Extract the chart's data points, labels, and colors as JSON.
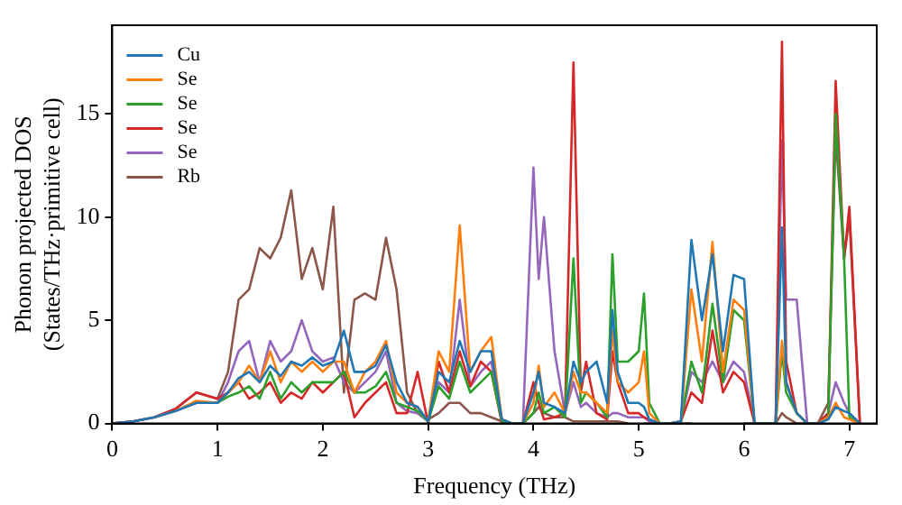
{
  "chart_data": {
    "type": "line",
    "xlabel": "Frequency (THz)",
    "ylabel": "Phonon projected DOS\n(States/THz·primitive cell)",
    "xlim": [
      0,
      7.26
    ],
    "xticks": [
      0,
      1,
      2,
      3,
      4,
      5,
      6,
      7
    ],
    "ylim": [
      0,
      19.3
    ],
    "yticks": [
      0,
      5,
      10,
      15
    ],
    "grid": false,
    "legend": "top left",
    "marker": "none",
    "line_style": "solid",
    "x": [
      0,
      0.2,
      0.4,
      0.6,
      0.8,
      1.0,
      1.1,
      1.2,
      1.3,
      1.4,
      1.5,
      1.6,
      1.7,
      1.8,
      1.9,
      2.0,
      2.1,
      2.2,
      2.3,
      2.4,
      2.5,
      2.6,
      2.7,
      2.8,
      2.9,
      3.0,
      3.1,
      3.2,
      3.3,
      3.4,
      3.5,
      3.6,
      3.7,
      3.8,
      3.9,
      4.0,
      4.05,
      4.1,
      4.2,
      4.3,
      4.38,
      4.45,
      4.5,
      4.6,
      4.7,
      4.75,
      4.8,
      4.9,
      5.0,
      5.05,
      5.1,
      5.2,
      5.3,
      5.4,
      5.5,
      5.6,
      5.7,
      5.8,
      5.9,
      6.0,
      6.1,
      6.2,
      6.3,
      6.36,
      6.4,
      6.5,
      6.6,
      6.7,
      6.8,
      6.87,
      6.95,
      7.0,
      7.1
    ],
    "series": [
      {
        "name": "Cu",
        "color": "#1f77b4",
        "values": [
          0,
          0.1,
          0.3,
          0.6,
          1.0,
          1.0,
          1.5,
          2.2,
          2.5,
          2.0,
          2.8,
          2.3,
          3.0,
          2.8,
          3.2,
          2.8,
          3.0,
          4.5,
          2.5,
          2.5,
          2.8,
          3.8,
          2.0,
          1.0,
          0.8,
          0.1,
          2.5,
          2.0,
          4.0,
          2.5,
          3.5,
          3.5,
          0.2,
          0,
          0,
          1.5,
          2.5,
          1.0,
          0.8,
          0.5,
          3.0,
          2.0,
          2.5,
          3.0,
          1.0,
          5.5,
          2.5,
          1.0,
          1.0,
          0.8,
          0.2,
          0,
          0,
          0.1,
          8.9,
          5.0,
          8.2,
          3.5,
          7.2,
          7.0,
          0,
          0,
          0,
          9.5,
          2.0,
          0.5,
          0,
          0,
          0.2,
          0.8,
          0.6,
          0.5,
          0
        ]
      },
      {
        "name": "Se",
        "color": "#ff7f0e",
        "values": [
          null,
          null,
          0.3,
          0.6,
          1.1,
          1.0,
          1.5,
          2.0,
          2.8,
          2.0,
          3.5,
          2.0,
          3.0,
          2.5,
          3.0,
          2.5,
          3.0,
          3.0,
          1.5,
          2.5,
          3.0,
          4.0,
          1.5,
          1.0,
          0.8,
          0.1,
          3.5,
          2.5,
          9.6,
          2.5,
          3.5,
          4.2,
          0.2,
          0,
          0,
          1.0,
          2.8,
          0.8,
          1.5,
          0.5,
          2.5,
          1.5,
          1.5,
          1.0,
          0.5,
          4.5,
          2.0,
          1.5,
          2.0,
          3.5,
          0.5,
          0,
          0,
          0.1,
          6.5,
          3.0,
          8.8,
          2.5,
          6.0,
          5.5,
          0,
          0,
          0,
          4.0,
          2.0,
          0.5,
          0,
          0,
          0.3,
          1.0,
          0.3,
          0.2,
          0
        ]
      },
      {
        "name": "Se",
        "color": "#2ca02c",
        "values": [
          null,
          null,
          null,
          null,
          1.0,
          1.0,
          1.3,
          1.5,
          1.8,
          1.2,
          2.5,
          1.2,
          2.0,
          1.5,
          2.0,
          2.0,
          2.0,
          2.5,
          1.5,
          1.5,
          1.8,
          2.5,
          1.0,
          0.8,
          0.6,
          0.1,
          1.8,
          1.2,
          3.0,
          1.5,
          2.0,
          2.5,
          0.1,
          0,
          0,
          0.5,
          1.5,
          0.5,
          0.8,
          0.3,
          8.0,
          1.0,
          1.5,
          1.0,
          0.3,
          8.2,
          3.0,
          3.0,
          3.5,
          6.3,
          1.0,
          0,
          0,
          0.1,
          3.0,
          1.5,
          5.8,
          2.0,
          5.5,
          5.0,
          0,
          0,
          0,
          3.5,
          1.5,
          0.5,
          0,
          0,
          0.3,
          15.0,
          8.0,
          0.3,
          0
        ]
      },
      {
        "name": "Se",
        "color": "#d62728",
        "values": [
          0,
          0.1,
          0.3,
          0.7,
          1.5,
          1.2,
          1.5,
          2.0,
          1.2,
          1.5,
          2.0,
          1.0,
          1.5,
          1.2,
          2.0,
          1.5,
          2.0,
          2.5,
          0.3,
          1.0,
          1.5,
          2.0,
          0.5,
          0.5,
          2.5,
          0,
          3.0,
          1.5,
          3.5,
          1.8,
          3.0,
          2.5,
          0,
          0,
          0,
          2.0,
          1.0,
          0.2,
          0.3,
          0.5,
          17.5,
          1.5,
          3.0,
          0.5,
          0.2,
          3.5,
          2.0,
          0.5,
          0.5,
          0.3,
          0.2,
          0,
          0,
          0.1,
          1.5,
          1.0,
          4.5,
          1.5,
          2.5,
          2.0,
          0,
          0,
          0,
          18.5,
          3.0,
          0.5,
          0,
          0,
          0.5,
          16.6,
          8.0,
          10.5,
          0
        ]
      },
      {
        "name": "Se",
        "color": "#9467bd",
        "values": [
          null,
          null,
          0.3,
          0.6,
          1.0,
          1.0,
          2.0,
          3.5,
          4.0,
          2.0,
          4.0,
          3.0,
          3.5,
          5.0,
          3.5,
          3.0,
          3.2,
          2.0,
          1.5,
          2.0,
          2.5,
          3.5,
          1.0,
          0.6,
          0.5,
          0.1,
          2.0,
          1.5,
          6.0,
          1.8,
          2.5,
          3.0,
          0.1,
          0,
          0,
          12.4,
          7.0,
          10.0,
          3.5,
          0.5,
          2.0,
          0.8,
          1.0,
          0.5,
          0.3,
          0.5,
          0.5,
          0.3,
          0.3,
          0.3,
          0.1,
          0,
          0,
          0.1,
          2.5,
          2.0,
          3.0,
          2.0,
          3.0,
          2.5,
          0,
          0,
          0,
          13.7,
          6.0,
          6.0,
          0,
          0,
          0.5,
          2.0,
          1.0,
          0.5,
          0
        ]
      },
      {
        "name": "Rb",
        "color": "#8c564b",
        "values": [
          0,
          0.1,
          0.3,
          0.7,
          1.5,
          1.2,
          2.5,
          6.0,
          6.5,
          8.5,
          8.0,
          9.0,
          11.3,
          7.0,
          8.5,
          6.5,
          10.5,
          1.5,
          6.0,
          6.3,
          6.0,
          9.0,
          6.5,
          1.5,
          0.5,
          0.2,
          0.5,
          1.0,
          1.0,
          0.5,
          0.5,
          0.3,
          0.1,
          0,
          0,
          0.5,
          0.8,
          0.5,
          0.3,
          0.3,
          0.1,
          0.1,
          0.1,
          0.1,
          0.1,
          0.1,
          0.1,
          0,
          null,
          0,
          0,
          0,
          0,
          0,
          0,
          null,
          null,
          null,
          null,
          0,
          0,
          0,
          0,
          0.5,
          0.3,
          0,
          0,
          0,
          1.0,
          14.0,
          8.0,
          10.0,
          0
        ]
      }
    ]
  }
}
